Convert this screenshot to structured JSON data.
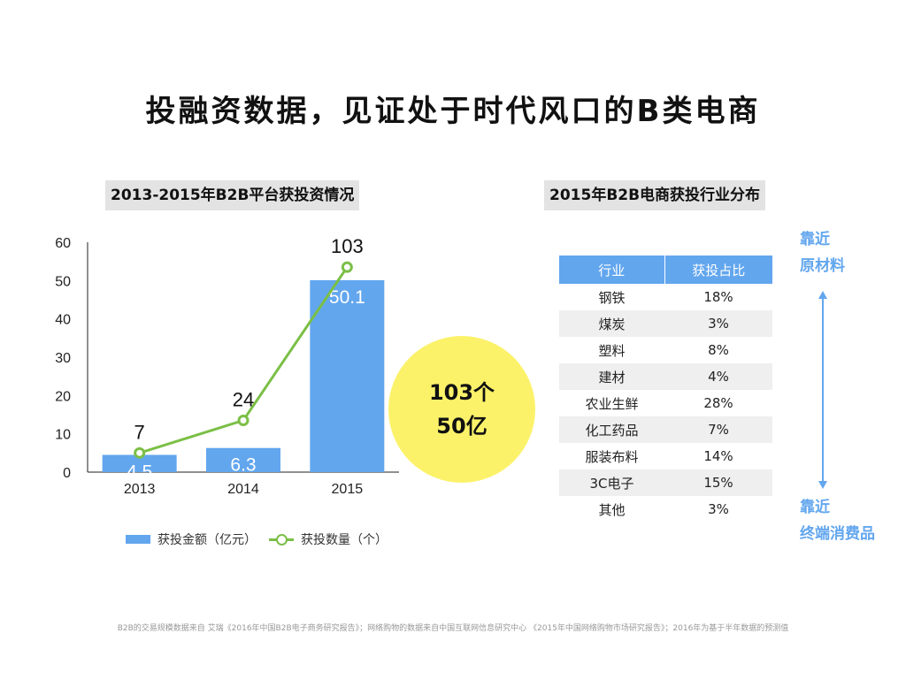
{
  "title": "投融资数据，见证处于时代风口的B类电商",
  "left_heading": "2013-2015年B2B平台获投资情况",
  "right_heading": "2015年B2B电商获投行业分布",
  "chart_data": {
    "type": "bar",
    "title": "2013-2015年B2B平台获投资情况",
    "categories": [
      "2013",
      "2014",
      "2015"
    ],
    "ylim": [
      0,
      60
    ],
    "yticks": [
      0,
      10,
      20,
      30,
      40,
      50,
      60
    ],
    "series": [
      {
        "name": "获投金额（亿元）",
        "type": "bar",
        "values": [
          4.5,
          6.3,
          50.1
        ],
        "labels": [
          "4.5",
          "6.3",
          "50.1"
        ],
        "color": "#62a6ee"
      },
      {
        "name": "获投数量（个）",
        "type": "line",
        "values": [
          7,
          24,
          103
        ],
        "plot_values": [
          5,
          13.5,
          53.5
        ],
        "labels": [
          "7",
          "24",
          "103"
        ],
        "color": "#7bbf46"
      }
    ],
    "legend_position": "bottom"
  },
  "circle": {
    "line1": "103个",
    "line2": "50亿",
    "color": "#fbf26a"
  },
  "table": {
    "headers": [
      "行业",
      "获投占比"
    ],
    "rows": [
      {
        "industry": "钢铁",
        "share": "18%"
      },
      {
        "industry": "煤炭",
        "share": "3%"
      },
      {
        "industry": "塑料",
        "share": "8%"
      },
      {
        "industry": "建材",
        "share": "4%"
      },
      {
        "industry": "农业生鲜",
        "share": "28%"
      },
      {
        "industry": "化工药品",
        "share": "7%"
      },
      {
        "industry": "服装布料",
        "share": "14%"
      },
      {
        "industry": "3C电子",
        "share": "15%"
      },
      {
        "industry": "其他",
        "share": "3%"
      }
    ]
  },
  "side_labels": {
    "top": [
      "靠近",
      "原材料"
    ],
    "bottom": [
      "靠近",
      "终端消费品"
    ]
  },
  "footnote": "B2B的交易规模数据来自 艾瑞《2016年中国B2B电子商务研究报告》；网络购物的数据来自中国互联网信息研究中心 《2015年中国网络购物市场研究报告》；2016年为基于半年数据的预测值",
  "colors": {
    "accent": "#62a6ee",
    "line": "#7bbf46",
    "highlight": "#fbf26a"
  }
}
